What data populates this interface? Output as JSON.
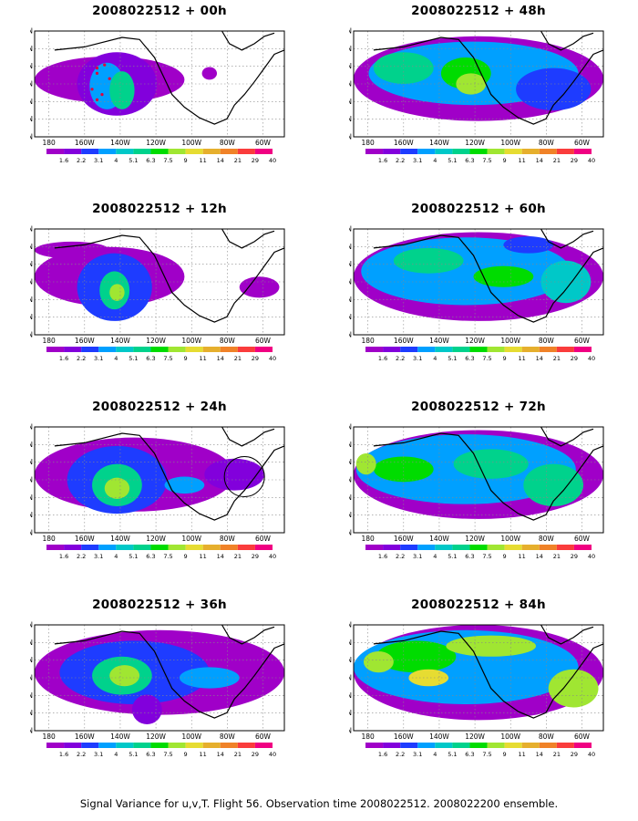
{
  "panels": [
    {
      "title": "2008022512 + 00h"
    },
    {
      "title": "2008022512 + 48h"
    },
    {
      "title": "2008022512 + 12h"
    },
    {
      "title": "2008022512 + 60h"
    },
    {
      "title": "2008022512 + 24h"
    },
    {
      "title": "2008022512 + 72h"
    },
    {
      "title": "2008022512 + 36h"
    },
    {
      "title": "2008022512 + 84h"
    }
  ],
  "lat_labels": [
    "70N",
    "60N",
    "50N",
    "40N",
    "30N",
    "20N",
    "10N"
  ],
  "lon_labels": [
    "180",
    "160W",
    "140W",
    "120W",
    "100W",
    "80W",
    "60W"
  ],
  "colorbar": {
    "labels": [
      "1.6",
      "2.2",
      "3.1",
      "4",
      "5.1",
      "6.3",
      "7.5",
      "9",
      "11",
      "14",
      "21",
      "29",
      "40"
    ],
    "colors": [
      "#a000c8",
      "#8200dc",
      "#1e3cff",
      "#00a0ff",
      "#00c8c8",
      "#00d28c",
      "#00dc00",
      "#a0e632",
      "#e6dc32",
      "#e6af2d",
      "#f08228",
      "#fa3c3c",
      "#f00082"
    ]
  },
  "caption": "Signal Variance for u,v,T. Flight 56. Observation time 2008022512. 2008022200 ensemble."
}
